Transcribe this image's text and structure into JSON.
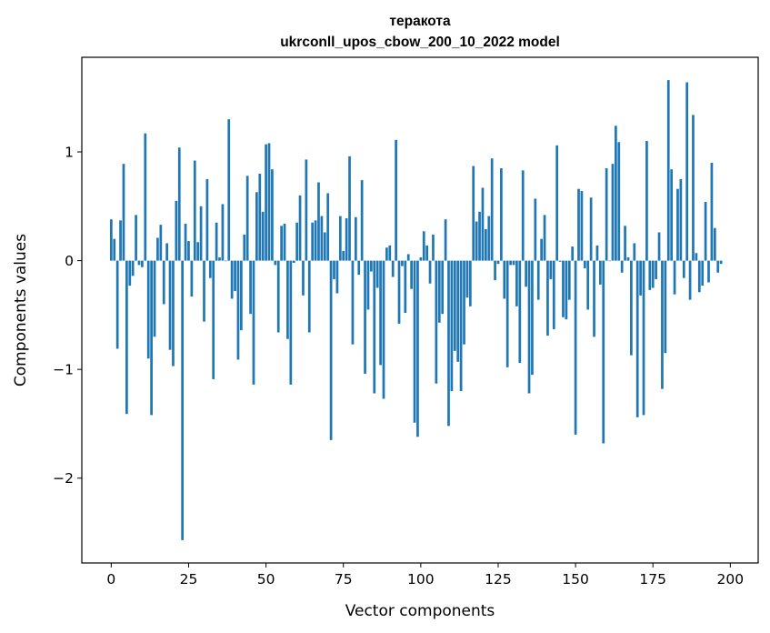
{
  "chart_data": {
    "type": "bar",
    "title": "теракота",
    "subtitle": "ukrconll_upos_cbow_200_10_2022 model",
    "xlabel": "Vector components",
    "ylabel": "Components values",
    "xlim": [
      -9.5,
      209
    ],
    "ylim": [
      -2.78,
      1.87
    ],
    "xticks": [
      0,
      25,
      50,
      75,
      100,
      125,
      150,
      175,
      200
    ],
    "yticks": [
      -2,
      -1,
      0,
      1
    ],
    "ytick_labels": [
      "−2",
      "−1",
      "0",
      "1"
    ],
    "grid": false,
    "bar_color": "#1f77b4",
    "values": [
      0.38,
      0.2,
      -0.81,
      0.37,
      0.89,
      -1.41,
      -0.23,
      -0.14,
      0.42,
      -0.04,
      -0.06,
      1.17,
      -0.9,
      -1.42,
      -0.7,
      0.21,
      0.33,
      -0.4,
      0.16,
      -0.82,
      -0.97,
      0.55,
      1.04,
      -2.57,
      0.34,
      0.18,
      -0.33,
      0.92,
      0.17,
      0.5,
      -0.56,
      0.75,
      -0.16,
      -1.09,
      0.35,
      0.03,
      0.52,
      0.0,
      1.3,
      -0.35,
      -0.28,
      -0.91,
      -0.64,
      0.24,
      0.78,
      -0.49,
      -1.14,
      0.63,
      0.8,
      0.45,
      1.07,
      1.08,
      0.84,
      -0.04,
      -0.66,
      0.32,
      0.34,
      -0.72,
      -1.14,
      -0.02,
      0.35,
      0.6,
      -0.32,
      0.93,
      -0.66,
      0.35,
      0.37,
      0.72,
      0.41,
      0.26,
      0.62,
      -1.65,
      -0.17,
      -0.3,
      0.41,
      0.09,
      0.39,
      0.96,
      -0.77,
      0.4,
      -0.13,
      0.74,
      -1.04,
      -0.45,
      -0.1,
      -1.22,
      -0.25,
      -0.96,
      -1.27,
      0.12,
      0.14,
      -0.15,
      1.11,
      -0.58,
      -0.05,
      -0.48,
      0.06,
      -0.26,
      -1.49,
      -1.62,
      0.03,
      0.27,
      0.14,
      -0.21,
      0.24,
      -1.13,
      -0.57,
      -0.49,
      0.38,
      -1.52,
      -1.2,
      -0.83,
      -0.93,
      -1.2,
      -0.77,
      -0.34,
      -0.42,
      0.87,
      0.36,
      0.45,
      0.67,
      0.29,
      0.41,
      0.94,
      -0.18,
      -0.03,
      0.85,
      -0.35,
      -0.98,
      -0.04,
      -0.04,
      -0.42,
      -0.94,
      0.83,
      -0.24,
      -1.22,
      -1.05,
      0.57,
      -0.36,
      0.2,
      0.42,
      -0.69,
      -0.17,
      -0.63,
      1.06,
      -0.01,
      -0.52,
      -0.54,
      -0.36,
      0.13,
      -1.6,
      0.66,
      0.64,
      -0.07,
      -0.45,
      0.58,
      -0.7,
      0.14,
      -0.22,
      -1.68,
      0.85,
      0.0,
      0.89,
      1.24,
      1.09,
      -0.11,
      0.32,
      0.03,
      -0.87,
      0.16,
      -1.44,
      -0.32,
      -1.42,
      1.1,
      -0.27,
      -0.25,
      -0.17,
      0.26,
      -1.18,
      -0.85,
      1.66,
      0.84,
      -0.31,
      0.66,
      0.75,
      -0.16,
      1.64,
      -0.36,
      1.34,
      0.07,
      -0.29,
      -0.23,
      0.54,
      -0.2,
      0.9,
      0.3,
      -0.11,
      -0.03
    ]
  }
}
